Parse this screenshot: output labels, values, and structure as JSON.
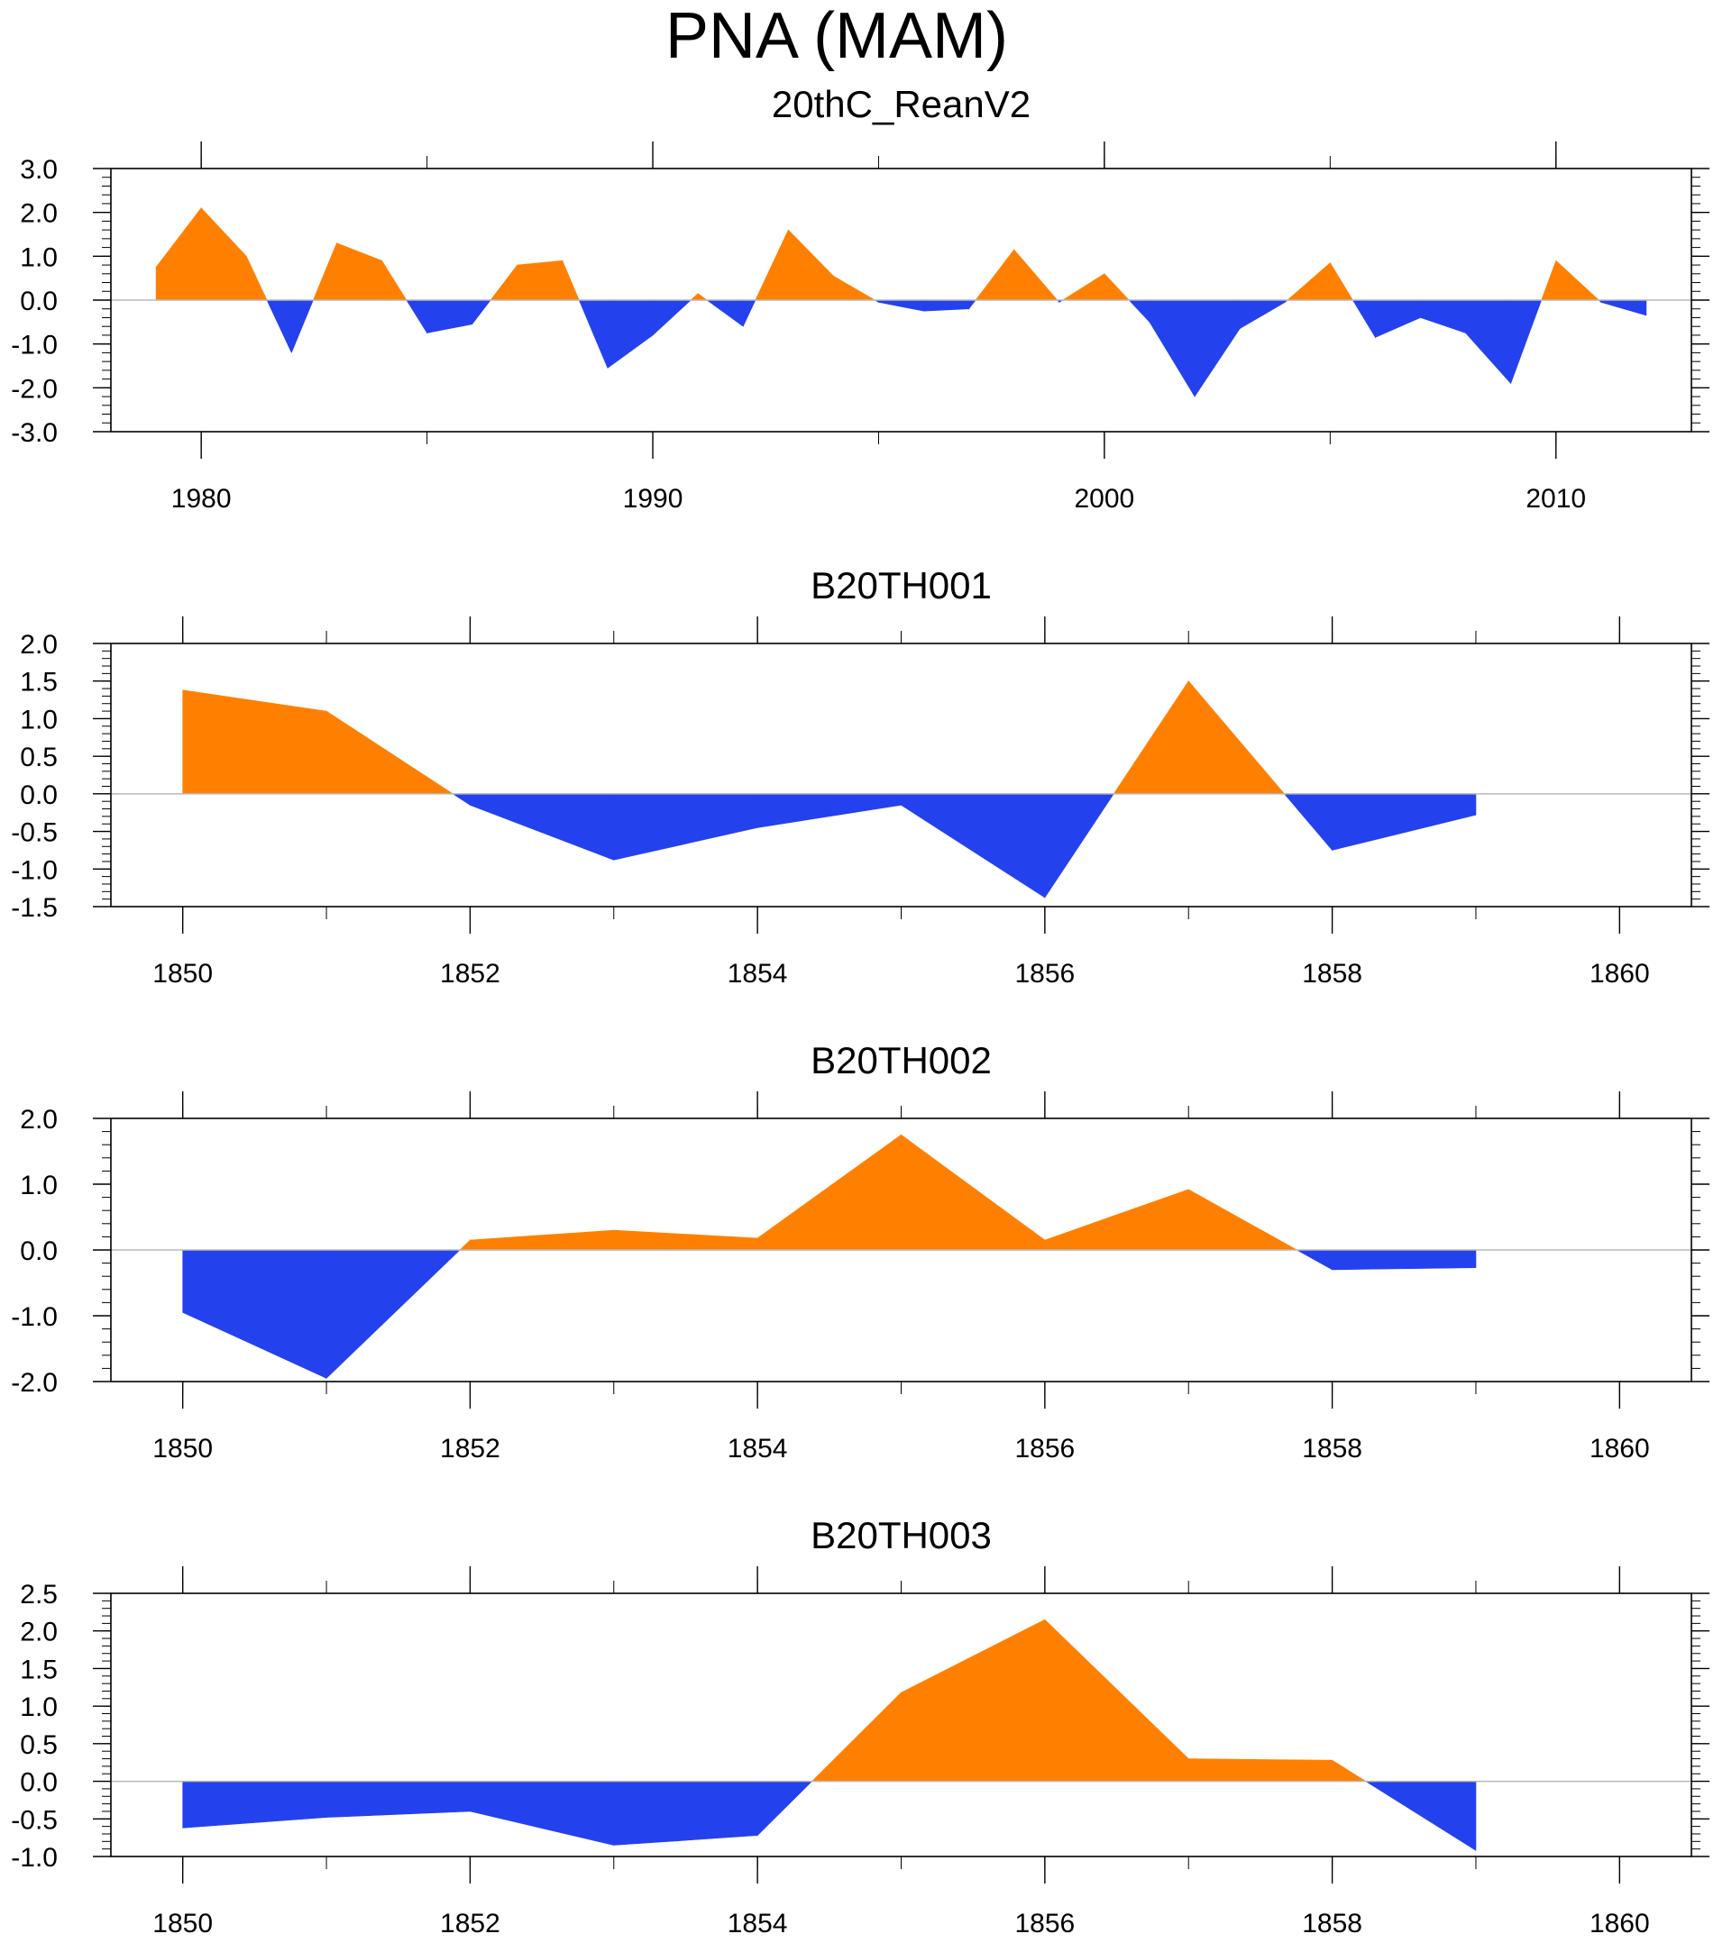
{
  "figure": {
    "title": "PNA (MAM)",
    "positive_color": "#ff8000",
    "negative_color": "#2441ee"
  },
  "chart_data": [
    {
      "type": "area",
      "title": "20thC_ReanV2",
      "xlabel": "",
      "ylabel": "",
      "xlim": [
        1978,
        2013
      ],
      "ylim": [
        -3.0,
        3.0
      ],
      "yticks": [
        -3.0,
        -2.0,
        -1.0,
        0.0,
        1.0,
        2.0,
        3.0
      ],
      "ytick_labels": [
        "-3.0",
        "-2.0",
        "-1.0",
        "0.0",
        "1.0",
        "2.0",
        "3.0"
      ],
      "xtick_labels": [
        "1980",
        "1990",
        "2000",
        "2010"
      ],
      "xticks": [
        1980,
        1990,
        2000,
        2010
      ],
      "x": [
        1979,
        1980,
        1981,
        1982,
        1983,
        1984,
        1985,
        1986,
        1987,
        1988,
        1989,
        1990,
        1991,
        1992,
        1993,
        1994,
        1995,
        1996,
        1997,
        1998,
        1999,
        2000,
        2001,
        2002,
        2003,
        2004,
        2005,
        2006,
        2007,
        2008,
        2009,
        2010,
        2011,
        2012
      ],
      "values": [
        0.75,
        2.1,
        1.0,
        -1.2,
        1.3,
        0.9,
        -0.75,
        -0.55,
        0.8,
        0.9,
        -1.55,
        -0.8,
        0.15,
        -0.6,
        1.6,
        0.55,
        -0.05,
        -0.25,
        -0.2,
        1.15,
        -0.05,
        0.6,
        -0.5,
        -2.2,
        -0.65,
        -0.05,
        0.85,
        -0.85,
        -0.4,
        -0.75,
        -1.9,
        0.9,
        -0.05,
        -0.35
      ]
    },
    {
      "type": "area",
      "title": "B20TH001",
      "xlabel": "",
      "ylabel": "",
      "xlim": [
        1849.5,
        1860.5
      ],
      "ylim": [
        -1.5,
        2.0
      ],
      "yticks": [
        -1.5,
        -1.0,
        -0.5,
        0.0,
        0.5,
        1.0,
        1.5,
        2.0
      ],
      "ytick_labels": [
        "-1.5",
        "-1.0",
        "-0.5",
        "0.0",
        "0.5",
        "1.0",
        "1.5",
        "2.0"
      ],
      "xtick_labels": [
        "1850",
        "1852",
        "1854",
        "1856",
        "1858",
        "1860"
      ],
      "xticks": [
        1850,
        1852,
        1854,
        1856,
        1858,
        1860
      ],
      "x": [
        1850,
        1851,
        1852,
        1853,
        1854,
        1855,
        1856,
        1857,
        1858,
        1859
      ],
      "values": [
        1.38,
        1.1,
        -0.15,
        -0.88,
        -0.45,
        -0.15,
        -1.38,
        1.5,
        -0.75,
        -0.28
      ]
    },
    {
      "type": "area",
      "title": "B20TH002",
      "xlabel": "",
      "ylabel": "",
      "xlim": [
        1849.5,
        1860.5
      ],
      "ylim": [
        -2.0,
        2.0
      ],
      "yticks": [
        -2.0,
        -1.0,
        0.0,
        1.0,
        2.0
      ],
      "ytick_labels": [
        "-2.0",
        "-1.0",
        "0.0",
        "1.0",
        "2.0"
      ],
      "xtick_labels": [
        "1850",
        "1852",
        "1854",
        "1856",
        "1858",
        "1860"
      ],
      "xticks": [
        1850,
        1852,
        1854,
        1856,
        1858,
        1860
      ],
      "x": [
        1850,
        1851,
        1852,
        1853,
        1854,
        1855,
        1856,
        1857,
        1858,
        1859
      ],
      "values": [
        -0.95,
        -1.95,
        0.15,
        0.3,
        0.18,
        1.75,
        0.15,
        0.92,
        -0.3,
        -0.27
      ]
    },
    {
      "type": "area",
      "title": "B20TH003",
      "xlabel": "",
      "ylabel": "",
      "xlim": [
        1849.5,
        1860.5
      ],
      "ylim": [
        -1.0,
        2.5
      ],
      "yticks": [
        -1.0,
        -0.5,
        0.0,
        0.5,
        1.0,
        1.5,
        2.0,
        2.5
      ],
      "ytick_labels": [
        "-1.0",
        "-0.5",
        "0.0",
        "0.5",
        "1.0",
        "1.5",
        "2.0",
        "2.5"
      ],
      "xtick_labels": [
        "1850",
        "1852",
        "1854",
        "1856",
        "1858",
        "1860"
      ],
      "xticks": [
        1850,
        1852,
        1854,
        1856,
        1858,
        1860
      ],
      "x": [
        1850,
        1851,
        1852,
        1853,
        1854,
        1855,
        1856,
        1857,
        1858,
        1859
      ],
      "values": [
        -0.62,
        -0.48,
        -0.4,
        -0.85,
        -0.72,
        1.18,
        2.15,
        0.3,
        0.28,
        -0.92
      ]
    }
  ]
}
